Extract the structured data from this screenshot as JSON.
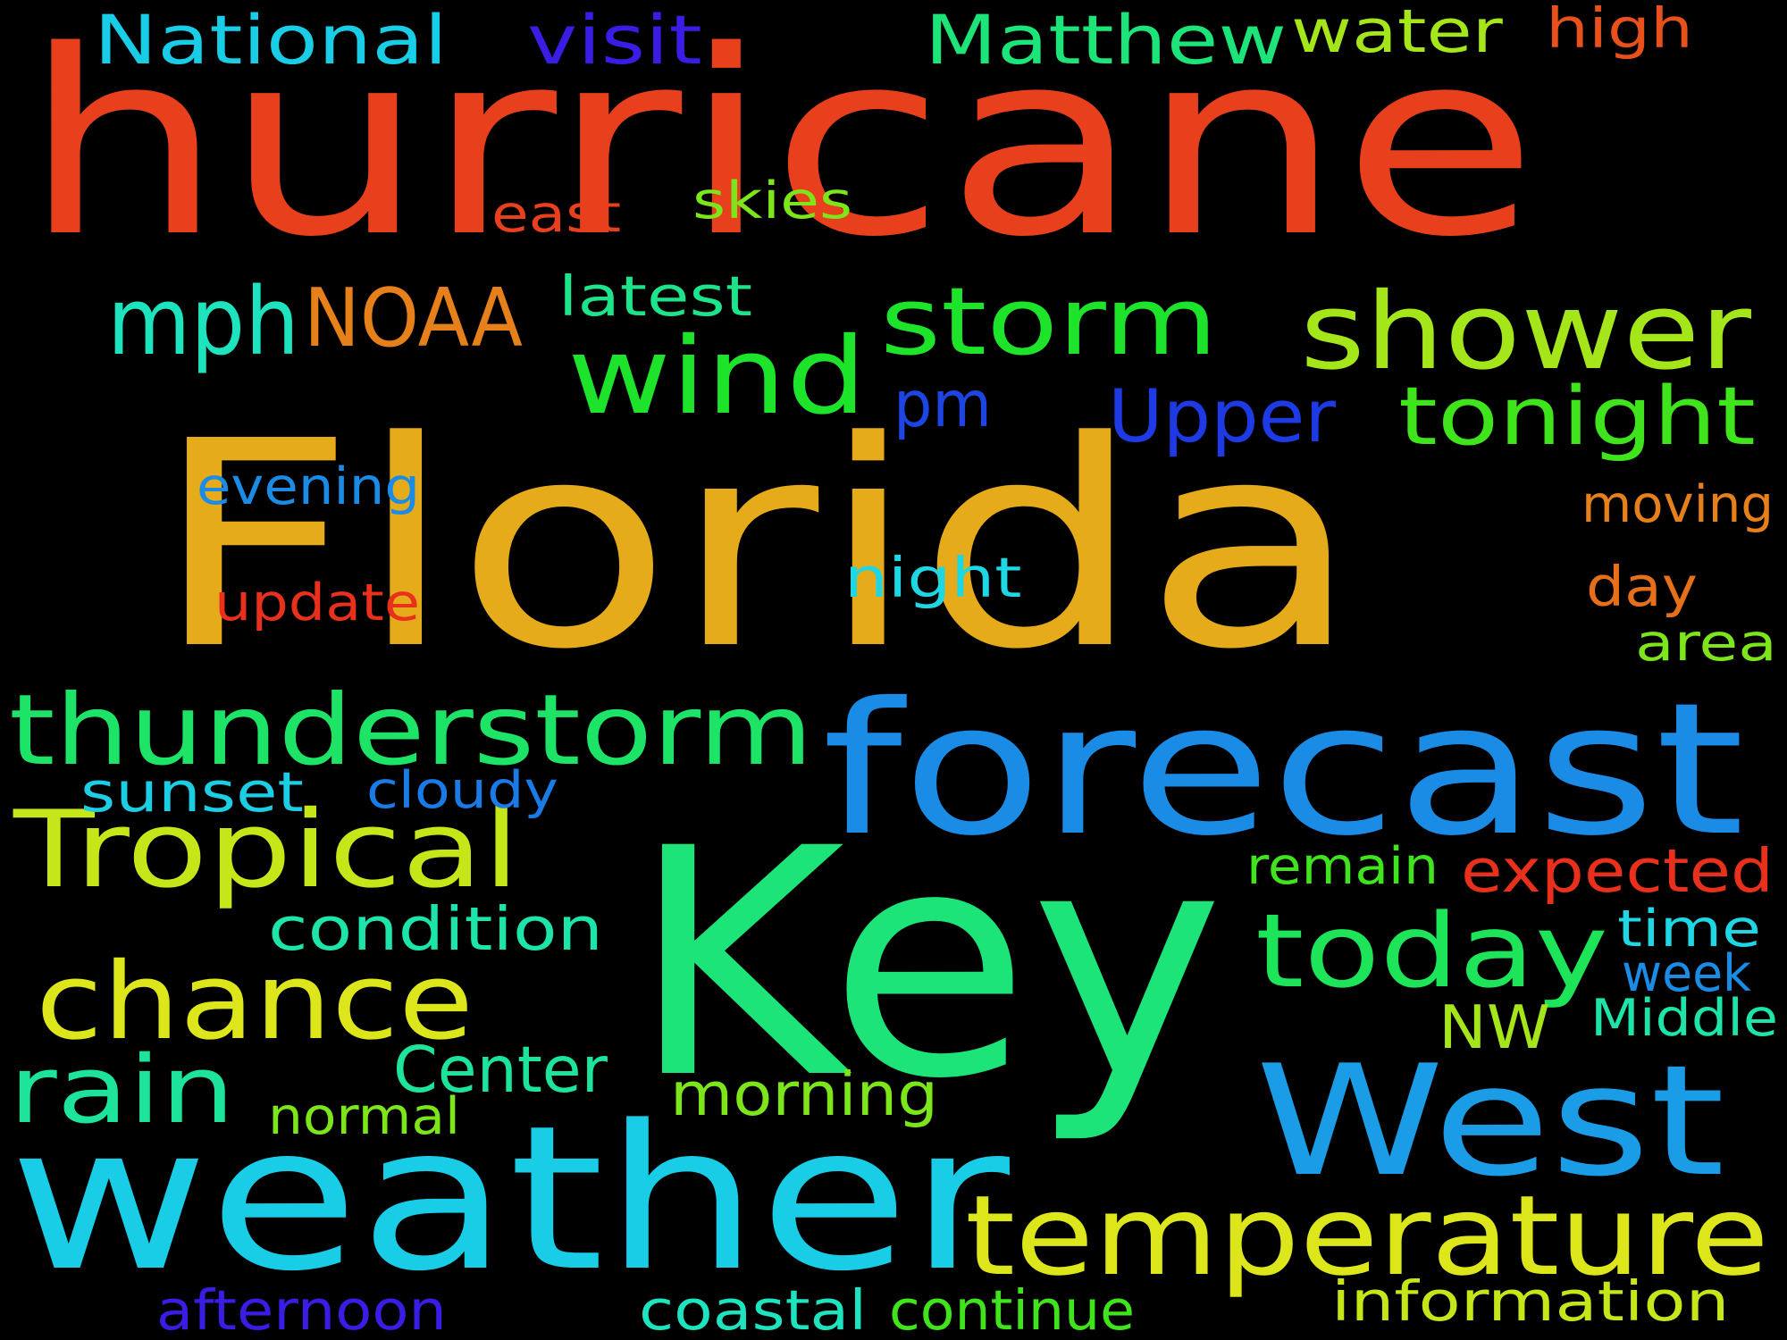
{
  "words": [
    {
      "text": "hurricane",
      "color": "#E8401C"
    },
    {
      "text": "Florida",
      "color": "#E6AB1A"
    },
    {
      "text": "Key",
      "color": "#1DE479"
    },
    {
      "text": "weather",
      "color": "#19CDE6"
    },
    {
      "text": "forecast",
      "color": "#1A8CE6"
    },
    {
      "text": "West",
      "color": "#1A9DE6"
    },
    {
      "text": "temperature",
      "color": "#DDE61A"
    },
    {
      "text": "storm",
      "color": "#1DE42A"
    },
    {
      "text": "shower",
      "color": "#A5E61A"
    },
    {
      "text": "thunderstorm",
      "color": "#1DE467"
    },
    {
      "text": "Tropical",
      "color": "#C6E61A"
    },
    {
      "text": "chance",
      "color": "#DDE61A"
    },
    {
      "text": "today",
      "color": "#1DE458"
    },
    {
      "text": "wind",
      "color": "#1DE42A"
    },
    {
      "text": "rain",
      "color": "#1DE49A"
    },
    {
      "text": "tonight",
      "color": "#3FE41D"
    },
    {
      "text": "mph",
      "color": "#1DE4BE"
    },
    {
      "text": "National",
      "color": "#19CDE6"
    },
    {
      "text": "Matthew",
      "color": "#1DE479"
    },
    {
      "text": "visit",
      "color": "#3A1DE4"
    },
    {
      "text": "NOAA",
      "color": "#E6801A"
    },
    {
      "text": "water",
      "color": "#A5E61A"
    },
    {
      "text": "Upper",
      "color": "#1D3AE4"
    },
    {
      "text": "high",
      "color": "#E8501C"
    },
    {
      "text": "pm",
      "color": "#1D45E4"
    },
    {
      "text": "latest",
      "color": "#1DE48A"
    },
    {
      "text": "skies",
      "color": "#7DE61A"
    },
    {
      "text": "east",
      "color": "#E8401C"
    },
    {
      "text": "evening",
      "color": "#1A8CE6"
    },
    {
      "text": "night",
      "color": "#1DD8E4"
    },
    {
      "text": "update",
      "color": "#E8301C"
    },
    {
      "text": "moving",
      "color": "#E6801A"
    },
    {
      "text": "day",
      "color": "#E6701A"
    },
    {
      "text": "area",
      "color": "#7DE61A"
    },
    {
      "text": "sunset",
      "color": "#1DCDE4"
    },
    {
      "text": "cloudy",
      "color": "#1A7AE6"
    },
    {
      "text": "condition",
      "color": "#1DE4A9"
    },
    {
      "text": "expected",
      "color": "#E8301C"
    },
    {
      "text": "remain",
      "color": "#3FE41D"
    },
    {
      "text": "time",
      "color": "#1DD8E4"
    },
    {
      "text": "week",
      "color": "#1A8CE6"
    },
    {
      "text": "Middle",
      "color": "#1DE4A9"
    },
    {
      "text": "NW",
      "color": "#A5E61A"
    },
    {
      "text": "Center",
      "color": "#1DE49A"
    },
    {
      "text": "morning",
      "color": "#7DE61A"
    },
    {
      "text": "normal",
      "color": "#7DE61A"
    },
    {
      "text": "afternoon",
      "color": "#3A1DE4"
    },
    {
      "text": "coastal",
      "color": "#1DE4BE"
    },
    {
      "text": "continue",
      "color": "#3FE41D"
    },
    {
      "text": "information",
      "color": "#C6E61A"
    }
  ]
}
